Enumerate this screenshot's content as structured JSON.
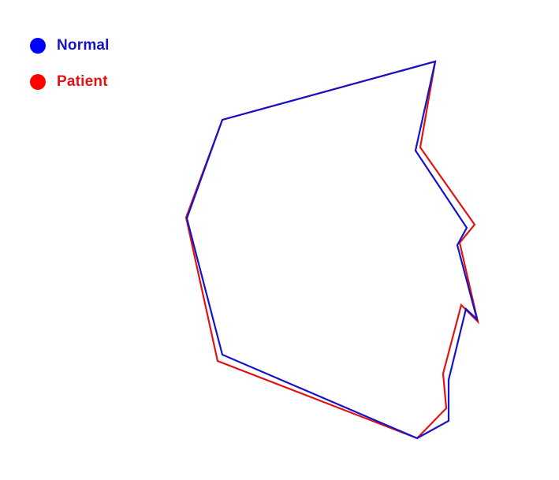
{
  "chart_data": {
    "type": "line",
    "title": "",
    "xlabel": "",
    "ylabel": "",
    "grid": false,
    "legend_placement": "top-left",
    "series": [
      {
        "name": "Normal",
        "color": "#1414c8",
        "marker_color": "#0000ff",
        "closed": true,
        "points": [
          [
            552,
            78
          ],
          [
            527,
            191
          ],
          [
            592,
            289
          ],
          [
            580,
            311
          ],
          [
            605,
            405
          ],
          [
            591,
            392
          ],
          [
            569,
            482
          ],
          [
            569,
            534
          ],
          [
            529,
            556
          ],
          [
            282,
            450
          ],
          [
            237,
            277
          ],
          [
            282,
            152
          ]
        ]
      },
      {
        "name": "Patient",
        "color": "#e01414",
        "marker_color": "#ff0000",
        "closed": true,
        "points": [
          [
            552,
            78
          ],
          [
            533,
            187
          ],
          [
            602,
            285
          ],
          [
            583,
            308
          ],
          [
            606,
            408
          ],
          [
            585,
            387
          ],
          [
            562,
            474
          ],
          [
            566,
            518
          ],
          [
            529,
            556
          ],
          [
            276,
            458
          ],
          [
            236,
            276
          ],
          [
            282,
            152
          ]
        ]
      }
    ]
  }
}
